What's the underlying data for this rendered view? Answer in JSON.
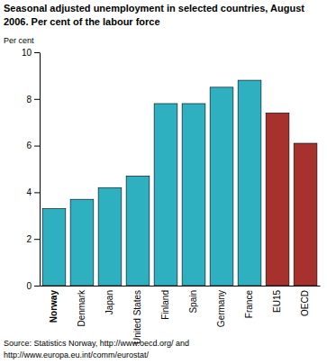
{
  "chart_data": {
    "type": "bar",
    "title": "Seasonal adjusted unemployment in selected countries, August 2006. Per cent of the labour force",
    "y_label": "Per cent",
    "categories": [
      "Norway",
      "Denmark",
      "Japan",
      "United States",
      "Finland",
      "Spain",
      "Germany",
      "France",
      "EU15",
      "OECD"
    ],
    "values": [
      3.3,
      3.7,
      4.2,
      4.7,
      7.8,
      7.8,
      8.5,
      8.8,
      7.4,
      6.1
    ],
    "colors": [
      "#2eb0c1",
      "#2eb0c1",
      "#2eb0c1",
      "#2eb0c1",
      "#2eb0c1",
      "#2eb0c1",
      "#2eb0c1",
      "#2eb0c1",
      "#a6312d",
      "#a6312d"
    ],
    "ylim": [
      0,
      10
    ],
    "yticks": [
      0,
      2,
      4,
      6,
      8,
      10
    ],
    "grid": false,
    "source": "Source: Statistics Norway, http://www.oecd.org/ and http://www.europa.eu.int/comm/eurostat/"
  }
}
